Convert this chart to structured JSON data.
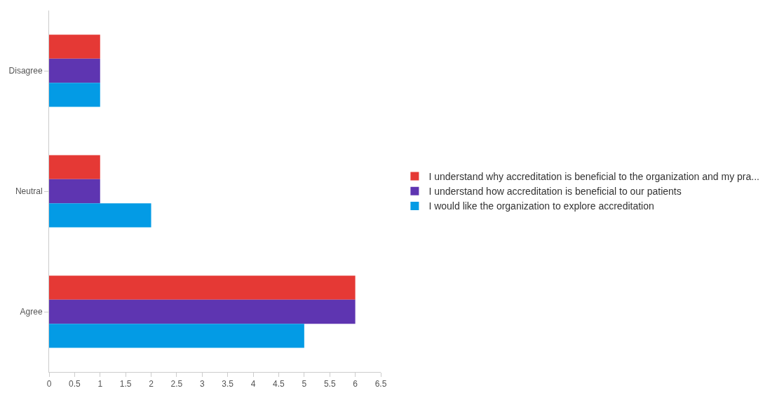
{
  "chart_data": {
    "type": "bar",
    "orientation": "horizontal",
    "categories": [
      "Disagree",
      "Neutral",
      "Agree"
    ],
    "series": [
      {
        "name": "I understand why accreditation is beneficial to the organization and my pra...",
        "color": "#e53935",
        "values": [
          1,
          1,
          6
        ]
      },
      {
        "name": "I understand how accreditation is beneficial to our patients",
        "color": "#5e35b1",
        "values": [
          1,
          1,
          6
        ]
      },
      {
        "name": "I would like the organization to explore accreditation",
        "color": "#039be5",
        "values": [
          1,
          2,
          5
        ]
      }
    ],
    "xlim": [
      0,
      6.5
    ],
    "xticks": [
      0,
      0.5,
      1,
      1.5,
      2,
      2.5,
      3,
      3.5,
      4,
      4.5,
      5,
      5.5,
      6,
      6.5
    ],
    "legend": "right"
  }
}
